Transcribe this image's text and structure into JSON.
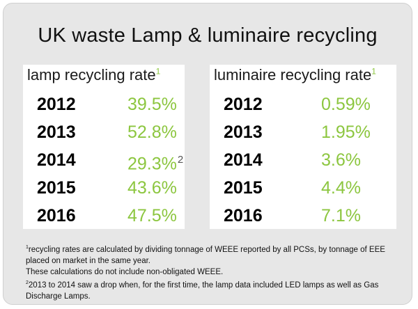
{
  "title": "UK waste Lamp & luminaire recycling",
  "colors": {
    "accent_green": "#8cc63f",
    "background": "#e7e7e7",
    "panel": "#ffffff"
  },
  "chart_data": {
    "type": "table",
    "title": "UK waste Lamp & luminaire recycling",
    "tables": [
      {
        "name": "lamp recycling rate",
        "footnote_marker": "1",
        "rows": [
          {
            "year": "2012",
            "value": "39.5%",
            "note": ""
          },
          {
            "year": "2013",
            "value": "52.8%",
            "note": ""
          },
          {
            "year": "2014",
            "value": "29.3%",
            "note": "2"
          },
          {
            "year": "2015",
            "value": "43.6%",
            "note": ""
          },
          {
            "year": "2016",
            "value": "47.5%",
            "note": ""
          }
        ]
      },
      {
        "name": "luminaire recycling rate",
        "footnote_marker": "1",
        "rows": [
          {
            "year": "2012",
            "value": "0.59%",
            "note": ""
          },
          {
            "year": "2013",
            "value": "1.95%",
            "note": ""
          },
          {
            "year": "2014",
            "value": "3.6%",
            "note": ""
          },
          {
            "year": "2015",
            "value": "4.4%",
            "note": ""
          },
          {
            "year": "2016",
            "value": "7.1%",
            "note": ""
          }
        ]
      }
    ]
  },
  "footnotes": {
    "note1_marker": "1",
    "note1_text": "recycling rates are calculated by dividing tonnage of WEEE reported by all PCSs, by tonnage of EEE placed on market in the same year.",
    "note1_extra": "These calculations do not include non-obligated WEEE.",
    "note2_marker": "2",
    "note2_text": "2013 to 2014 saw a drop when, for the first time, the lamp data included LED lamps as well as Gas Discharge Lamps."
  }
}
